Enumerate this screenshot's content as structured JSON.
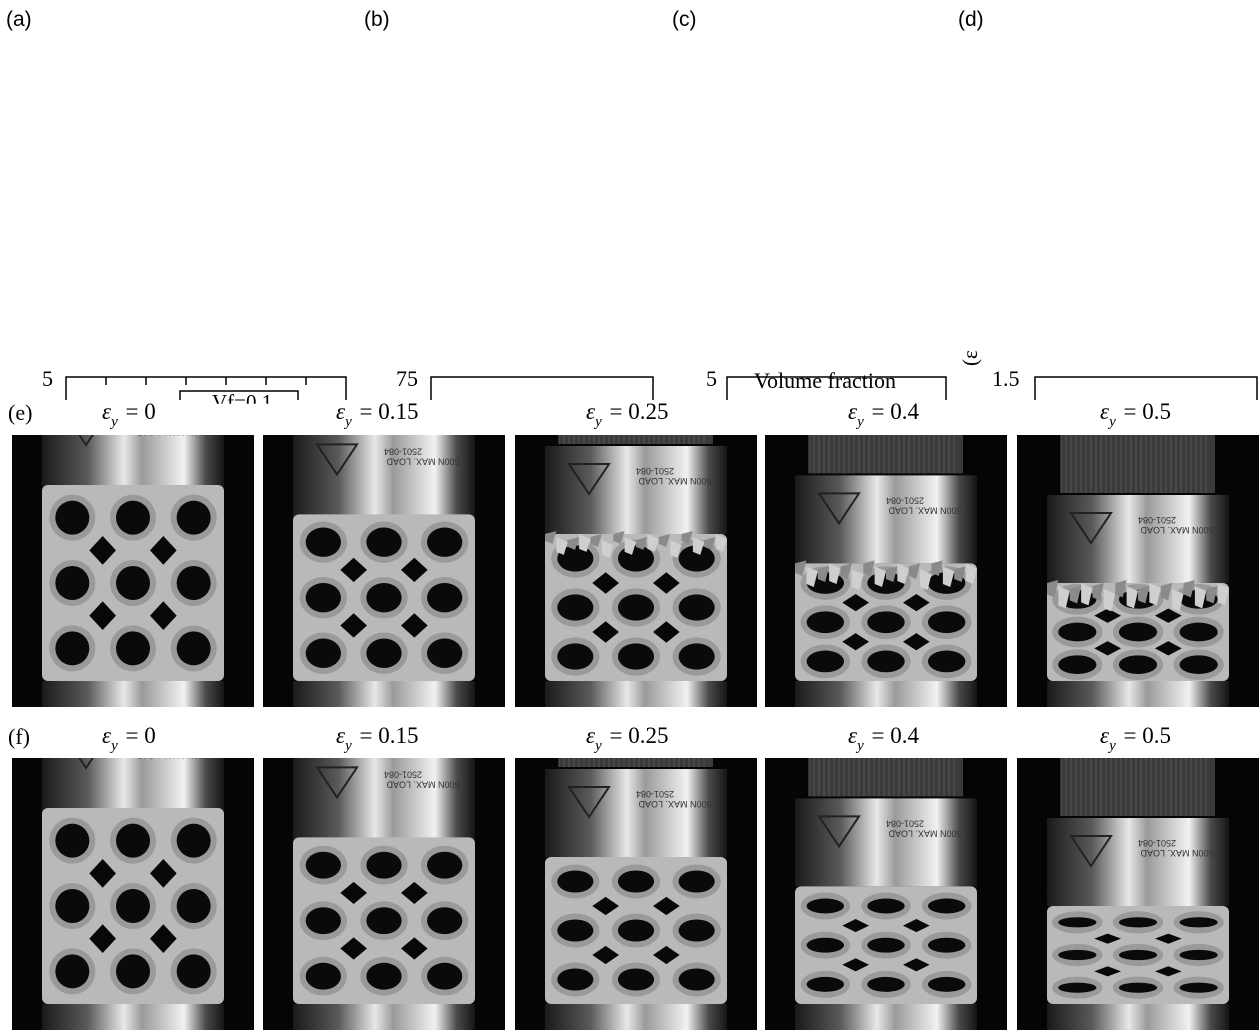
{
  "top_panels": [
    {
      "label": "(a)",
      "tick": "5"
    },
    {
      "label": "(b)",
      "tick": "75"
    },
    {
      "label": "(c)",
      "tick": "5",
      "axis_title": "Volume fraction"
    },
    {
      "label": "(d)",
      "tick": "1.5"
    }
  ],
  "stray_text": {
    "vf": "Vf=0.1",
    "unit_fragment": "(ɛ"
  },
  "rows": [
    {
      "label": "(e)",
      "frames": [
        {
          "strain": "= 0",
          "crush": 0.0
        },
        {
          "strain": "= 0.15",
          "crush": 0.15
        },
        {
          "strain": "= 0.25",
          "crush": 0.25
        },
        {
          "strain": "= 0.4",
          "crush": 0.4
        },
        {
          "strain": "= 0.5",
          "crush": 0.5
        }
      ]
    },
    {
      "label": "(f)",
      "frames": [
        {
          "strain": "= 0",
          "crush": 0.0
        },
        {
          "strain": "= 0.15",
          "crush": 0.15
        },
        {
          "strain": "= 0.25",
          "crush": 0.25
        },
        {
          "strain": "= 0.4",
          "crush": 0.4
        },
        {
          "strain": "= 0.5",
          "crush": 0.5
        }
      ]
    }
  ],
  "strain_symbol": "ε",
  "strain_subscript": "y",
  "plate_text": {
    "line1": "500N MAX. LOAD",
    "line2": "2501-084"
  },
  "colors": {
    "lattice": "#b9b9b9",
    "metal": "#d8d8d8",
    "background": "#050505"
  }
}
